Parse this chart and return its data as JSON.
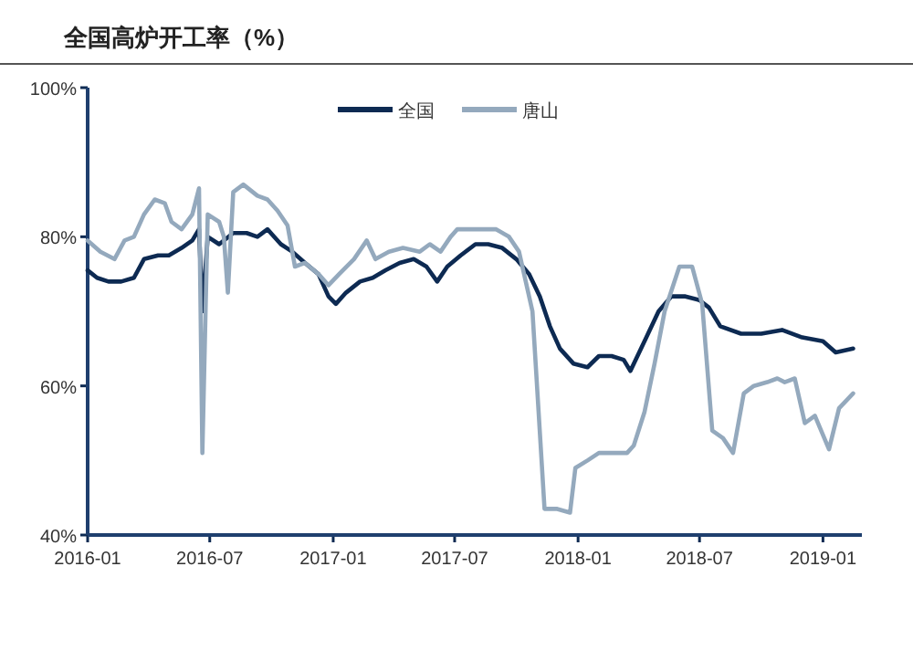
{
  "chart_data": {
    "type": "line",
    "title": "全国高炉开工率（%）",
    "legend": "top",
    "xlim": [
      "2016-01-01",
      "2019-02-28"
    ],
    "xticks": [
      {
        "value": "2016-01-01",
        "label": "2016-01"
      },
      {
        "value": "2016-07-01",
        "label": "2016-07"
      },
      {
        "value": "2017-01-01",
        "label": "2017-01"
      },
      {
        "value": "2017-07-01",
        "label": "2017-07"
      },
      {
        "value": "2018-01-01",
        "label": "2018-01"
      },
      {
        "value": "2018-07-01",
        "label": "2018-07"
      },
      {
        "value": "2019-01-01",
        "label": "2019-01"
      }
    ],
    "ylim": [
      40,
      100
    ],
    "yticks": [
      {
        "value": 40,
        "label": "40%"
      },
      {
        "value": 60,
        "label": "60%"
      },
      {
        "value": 80,
        "label": "80%"
      },
      {
        "value": 100,
        "label": "100%"
      }
    ],
    "series": [
      {
        "name": "全国",
        "color": "#0d2a52",
        "x": [
          "2016-01-01",
          "2016-01-15",
          "2016-02-01",
          "2016-02-20",
          "2016-03-10",
          "2016-03-25",
          "2016-04-15",
          "2016-05-01",
          "2016-05-20",
          "2016-06-05",
          "2016-06-15",
          "2016-06-20",
          "2016-06-28",
          "2016-07-15",
          "2016-08-05",
          "2016-08-25",
          "2016-09-10",
          "2016-09-25",
          "2016-10-15",
          "2016-11-01",
          "2016-11-20",
          "2016-12-10",
          "2016-12-25",
          "2017-01-05",
          "2017-01-20",
          "2017-02-10",
          "2017-03-01",
          "2017-03-20",
          "2017-04-10",
          "2017-05-01",
          "2017-05-20",
          "2017-06-05",
          "2017-06-20",
          "2017-07-10",
          "2017-08-01",
          "2017-08-20",
          "2017-09-10",
          "2017-10-01",
          "2017-10-20",
          "2017-11-05",
          "2017-11-20",
          "2017-12-05",
          "2017-12-25",
          "2018-01-15",
          "2018-02-01",
          "2018-02-20",
          "2018-03-10",
          "2018-03-20",
          "2018-04-10",
          "2018-05-01",
          "2018-05-20",
          "2018-06-10",
          "2018-07-01",
          "2018-07-15",
          "2018-08-01",
          "2018-09-01",
          "2018-10-01",
          "2018-11-01",
          "2018-12-01",
          "2019-01-01",
          "2019-01-20",
          "2019-02-15"
        ],
        "values": [
          75.5,
          74.5,
          74,
          74,
          74.5,
          77,
          77.5,
          77.5,
          78.5,
          79.5,
          81,
          70,
          80,
          79,
          80.5,
          80.5,
          80,
          81,
          79,
          78,
          76.5,
          75,
          72,
          71,
          72.5,
          74,
          74.5,
          75.5,
          76.5,
          77,
          76,
          74,
          76,
          77.5,
          79,
          79,
          78.5,
          77,
          75,
          72,
          68,
          65,
          63,
          62.5,
          64,
          64,
          63.5,
          62,
          66,
          70,
          72,
          72,
          71.5,
          70.5,
          68,
          67,
          67,
          67.5,
          66.5,
          66,
          64.5,
          65
        ]
      },
      {
        "name": "唐山",
        "color": "#94a9bd",
        "x": [
          "2016-01-01",
          "2016-01-20",
          "2016-02-10",
          "2016-02-25",
          "2016-03-10",
          "2016-03-25",
          "2016-04-10",
          "2016-04-25",
          "2016-05-05",
          "2016-05-20",
          "2016-06-05",
          "2016-06-15",
          "2016-06-20",
          "2016-06-28",
          "2016-07-15",
          "2016-07-22",
          "2016-07-28",
          "2016-08-05",
          "2016-08-20",
          "2016-09-10",
          "2016-09-25",
          "2016-10-10",
          "2016-10-25",
          "2016-11-05",
          "2016-11-20",
          "2016-12-10",
          "2016-12-25",
          "2017-01-10",
          "2017-02-01",
          "2017-02-20",
          "2017-03-05",
          "2017-03-25",
          "2017-04-15",
          "2017-05-10",
          "2017-05-25",
          "2017-06-10",
          "2017-06-25",
          "2017-07-05",
          "2017-07-20",
          "2017-08-10",
          "2017-09-01",
          "2017-09-20",
          "2017-10-05",
          "2017-10-25",
          "2017-11-12",
          "2017-12-01",
          "2017-12-20",
          "2017-12-28",
          "2018-01-15",
          "2018-02-01",
          "2018-03-15",
          "2018-03-25",
          "2018-04-10",
          "2018-04-25",
          "2018-05-10",
          "2018-06-01",
          "2018-06-20",
          "2018-07-05",
          "2018-07-20",
          "2018-08-05",
          "2018-08-20",
          "2018-09-05",
          "2018-09-20",
          "2018-10-10",
          "2018-10-25",
          "2018-11-05",
          "2018-11-20",
          "2018-12-05",
          "2018-12-20",
          "2019-01-10",
          "2019-01-25",
          "2019-02-15"
        ],
        "values": [
          79.5,
          78,
          77,
          79.5,
          80,
          83,
          85,
          84.5,
          82,
          81,
          83,
          86.5,
          51,
          83,
          82,
          80,
          72.5,
          86,
          87,
          85.5,
          85,
          83.5,
          81.5,
          76,
          76.5,
          75,
          73.5,
          75,
          77,
          79.5,
          77,
          78,
          78.5,
          78,
          79,
          78,
          80,
          81,
          81,
          81,
          81,
          80,
          78,
          70,
          43.5,
          43.5,
          43,
          49,
          50,
          51,
          51,
          52,
          56.5,
          63,
          70,
          76,
          76,
          71,
          54,
          53,
          51,
          59,
          60,
          60.5,
          61,
          60.5,
          61,
          55,
          56,
          51.5,
          57,
          59
        ]
      }
    ]
  }
}
